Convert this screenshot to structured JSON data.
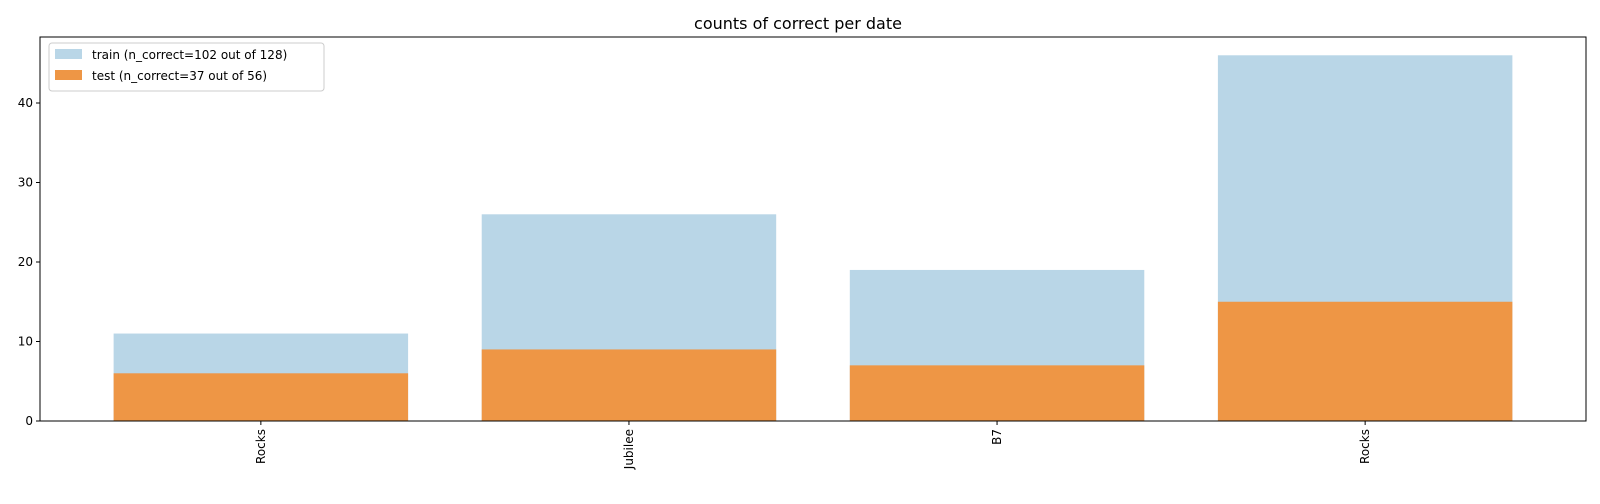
{
  "chart_data": {
    "type": "bar",
    "title": "counts of correct per date",
    "xlabel": "",
    "ylabel": "",
    "categories": [
      "Rocks",
      "Jubilee",
      "B7",
      "Rocks"
    ],
    "series": [
      {
        "name": "train (n_correct=102 out of 128)",
        "values": [
          11,
          26,
          19,
          46
        ],
        "color": "#b9d6e7"
      },
      {
        "name": "test (n_correct=37 out of 56)",
        "values": [
          6,
          9,
          7,
          15
        ],
        "color": "#ee9645"
      }
    ],
    "ylim": [
      0,
      48.3
    ],
    "yticks": [
      0,
      10,
      20,
      30,
      40
    ],
    "overlay": true,
    "grid": false,
    "legend_position": "upper left",
    "x_tick_rotation": "vertical"
  }
}
